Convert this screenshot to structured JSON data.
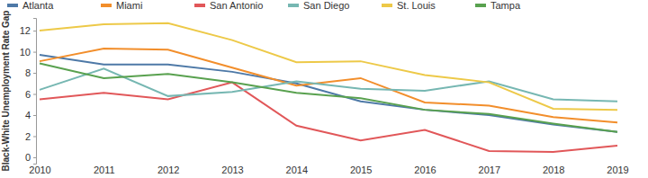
{
  "chart_data": {
    "type": "line",
    "y_label": "Black-White Unemployment Rate Gap",
    "categories": [
      "2010",
      "2011",
      "2012",
      "2013",
      "2014",
      "2015",
      "2016",
      "2017",
      "2018",
      "2019"
    ],
    "series": [
      {
        "name": "Atlanta",
        "color": "#4e79a7",
        "values": [
          9.7,
          8.8,
          8.8,
          8.1,
          7.0,
          5.3,
          4.5,
          4.0,
          3.1,
          2.4
        ]
      },
      {
        "name": "Miami",
        "color": "#f28e2b",
        "values": [
          9.1,
          10.3,
          10.2,
          8.5,
          6.8,
          7.5,
          5.2,
          4.9,
          3.8,
          3.3
        ]
      },
      {
        "name": "San Antonio",
        "color": "#e15759",
        "values": [
          5.5,
          6.1,
          5.5,
          7.1,
          3.0,
          1.6,
          2.6,
          0.6,
          0.5,
          1.1
        ]
      },
      {
        "name": "San Diego",
        "color": "#76b7b2",
        "values": [
          6.4,
          8.4,
          5.8,
          6.2,
          7.2,
          6.5,
          6.3,
          7.2,
          5.5,
          5.3
        ]
      },
      {
        "name": "St. Louis",
        "color": "#edc948",
        "values": [
          12.0,
          12.6,
          12.7,
          11.1,
          9.0,
          9.1,
          7.8,
          7.1,
          4.6,
          4.5
        ]
      },
      {
        "name": "Tampa",
        "color": "#59a14f",
        "values": [
          8.9,
          7.5,
          7.9,
          7.1,
          6.1,
          5.6,
          4.5,
          4.1,
          3.2,
          2.4
        ]
      }
    ],
    "ylim": [
      -0.6,
      13.2
    ],
    "yticks": [
      0,
      2,
      4,
      6,
      8,
      10,
      12
    ],
    "grid": false,
    "legend": "top"
  }
}
